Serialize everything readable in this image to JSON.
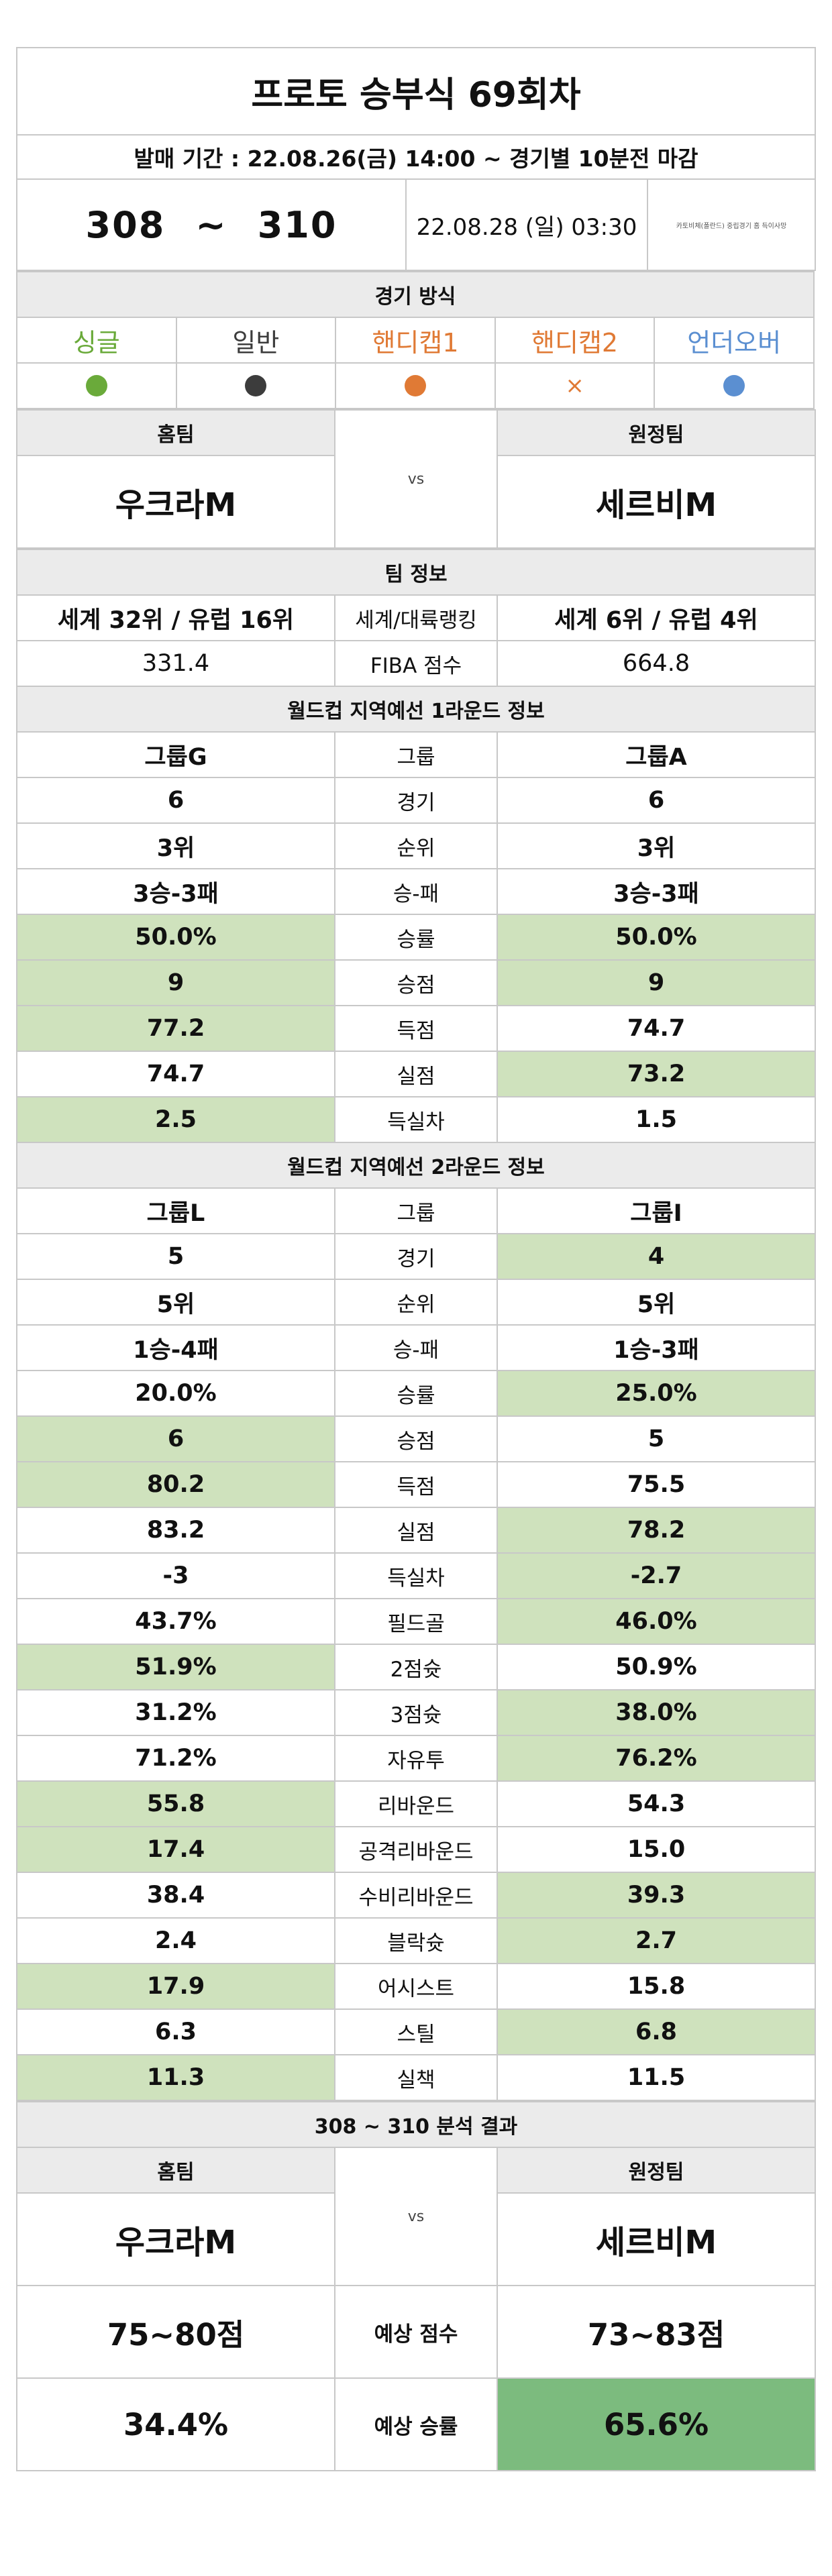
{
  "title": "프로토 승부식 69회차",
  "sale_period": "발매 기간 : 22.08.26(금) 14:00 ~ 경기별 10분전 마감",
  "match_range": {
    "from": "308",
    "sep": "~",
    "to": "310"
  },
  "match_date": "22.08.28 (일) 03:30",
  "match_note": "카토비체(폴란드) 중립경기 홈 득이사망",
  "game_method": {
    "header": "경기 방식",
    "options": [
      {
        "label": "싱글",
        "color": "#6aaa3a",
        "mark": "dot"
      },
      {
        "label": "일반",
        "color": "#3c3c3c",
        "mark": "dot"
      },
      {
        "label": "핸디캡1",
        "color": "#e07a35",
        "mark": "dot"
      },
      {
        "label": "핸디캡2",
        "color": "#e07a35",
        "mark": "×"
      },
      {
        "label": "언더오버",
        "color": "#5b8fd1",
        "mark": "dot"
      }
    ]
  },
  "teams": {
    "home_label": "홈팀",
    "away_label": "원정팀",
    "vs": "vs",
    "home": "우크라M",
    "away": "세르비M"
  },
  "team_info": {
    "header": "팀 정보",
    "rows": [
      {
        "home": "세계 32위 / 유럽 16위",
        "label": "세계/대륙랭킹",
        "away": "세계 6위 / 유럽 4위",
        "hl": ""
      },
      {
        "home": "331.4",
        "label": "FIBA 점수",
        "away": "664.8",
        "hl": "",
        "light": true
      }
    ]
  },
  "round1": {
    "header": "월드컵 지역예선 1라운드 정보",
    "rows": [
      {
        "home": "그룹G",
        "label": "그룹",
        "away": "그룹A",
        "hl": ""
      },
      {
        "home": "6",
        "label": "경기",
        "away": "6",
        "hl": ""
      },
      {
        "home": "3위",
        "label": "순위",
        "away": "3위",
        "hl": ""
      },
      {
        "home": "3승-3패",
        "label": "승-패",
        "away": "3승-3패",
        "hl": ""
      },
      {
        "home": "50.0%",
        "label": "승률",
        "away": "50.0%",
        "hl": "both"
      },
      {
        "home": "9",
        "label": "승점",
        "away": "9",
        "hl": "both"
      },
      {
        "home": "77.2",
        "label": "득점",
        "away": "74.7",
        "hl": "home"
      },
      {
        "home": "74.7",
        "label": "실점",
        "away": "73.2",
        "hl": "away"
      },
      {
        "home": "2.5",
        "label": "득실차",
        "away": "1.5",
        "hl": "home"
      }
    ]
  },
  "round2": {
    "header": "월드컵 지역예선 2라운드 정보",
    "rows": [
      {
        "home": "그룹L",
        "label": "그룹",
        "away": "그룹I",
        "hl": ""
      },
      {
        "home": "5",
        "label": "경기",
        "away": "4",
        "hl": "away"
      },
      {
        "home": "5위",
        "label": "순위",
        "away": "5위",
        "hl": ""
      },
      {
        "home": "1승-4패",
        "label": "승-패",
        "away": "1승-3패",
        "hl": ""
      },
      {
        "home": "20.0%",
        "label": "승률",
        "away": "25.0%",
        "hl": "away"
      },
      {
        "home": "6",
        "label": "승점",
        "away": "5",
        "hl": "home"
      },
      {
        "home": "80.2",
        "label": "득점",
        "away": "75.5",
        "hl": "home"
      },
      {
        "home": "83.2",
        "label": "실점",
        "away": "78.2",
        "hl": "away"
      },
      {
        "home": "-3",
        "label": "득실차",
        "away": "-2.7",
        "hl": "away"
      },
      {
        "home": "43.7%",
        "label": "필드골",
        "away": "46.0%",
        "hl": "away"
      },
      {
        "home": "51.9%",
        "label": "2점슛",
        "away": "50.9%",
        "hl": "home"
      },
      {
        "home": "31.2%",
        "label": "3점슛",
        "away": "38.0%",
        "hl": "away"
      },
      {
        "home": "71.2%",
        "label": "자유투",
        "away": "76.2%",
        "hl": "away"
      },
      {
        "home": "55.8",
        "label": "리바운드",
        "away": "54.3",
        "hl": "home"
      },
      {
        "home": "17.4",
        "label": "공격리바운드",
        "away": "15.0",
        "hl": "home"
      },
      {
        "home": "38.4",
        "label": "수비리바운드",
        "away": "39.3",
        "hl": "away"
      },
      {
        "home": "2.4",
        "label": "블락슛",
        "away": "2.7",
        "hl": "away"
      },
      {
        "home": "17.9",
        "label": "어시스트",
        "away": "15.8",
        "hl": "home"
      },
      {
        "home": "6.3",
        "label": "스틸",
        "away": "6.8",
        "hl": "away"
      },
      {
        "home": "11.3",
        "label": "실책",
        "away": "11.5",
        "hl": "home"
      }
    ]
  },
  "analysis": {
    "header": "308 ~ 310 분석 결과",
    "score_label": "예상 점수",
    "home_score": "75~80점",
    "away_score": "73~83점",
    "winrate_label": "예상 승률",
    "home_winrate": "34.4%",
    "away_winrate": "65.6%"
  },
  "colors": {
    "highlight": "#cfe2bd",
    "strong_highlight": "#7cbb7e",
    "header_bg": "#ebebeb",
    "border": "#c8c8c8"
  }
}
